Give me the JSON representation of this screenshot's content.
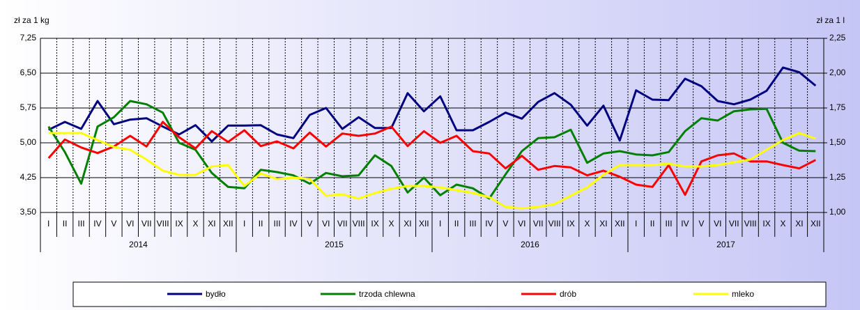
{
  "chart_data": {
    "type": "line",
    "y_label": "zł za 1 kg",
    "y2_label": "zł za 1 l",
    "categories": [
      "I",
      "II",
      "III",
      "IV",
      "V",
      "VI",
      "VII",
      "VIII",
      "IX",
      "X",
      "XI",
      "XII",
      "I",
      "II",
      "III",
      "IV",
      "V",
      "VI",
      "VII",
      "VIII",
      "IX",
      "X",
      "XI",
      "XII",
      "I",
      "II",
      "III",
      "IV",
      "V",
      "VI",
      "VII",
      "VIII",
      "IX",
      "X",
      "XI",
      "XII",
      "I",
      "II",
      "III",
      "IV",
      "V",
      "VI",
      "VII",
      "VIII",
      "IX",
      "X",
      "XI",
      "XII"
    ],
    "year_labels": [
      "2014",
      "2015",
      "2016",
      "2017"
    ],
    "ylim": [
      3.5,
      7.25
    ],
    "yticks": [
      {
        "value": 3.5,
        "label": "3,50"
      },
      {
        "value": 4.25,
        "label": "4,25"
      },
      {
        "value": 5.0,
        "label": "5,00"
      },
      {
        "value": 5.75,
        "label": "5,75"
      },
      {
        "value": 6.5,
        "label": "6,50"
      },
      {
        "value": 7.25,
        "label": "7,25"
      }
    ],
    "y2lim": [
      1.0,
      2.25
    ],
    "y2ticks": [
      {
        "value": 1.0,
        "label": "1,00"
      },
      {
        "value": 1.25,
        "label": "1,25"
      },
      {
        "value": 1.5,
        "label": "1,50"
      },
      {
        "value": 1.75,
        "label": "1,75"
      },
      {
        "value": 2.0,
        "label": "2,00"
      },
      {
        "value": 2.25,
        "label": "2,25"
      }
    ],
    "grid": true,
    "legend": "bottom",
    "series": [
      {
        "name": "bydło",
        "color": "#000080",
        "values": [
          5.28,
          5.45,
          5.3,
          5.9,
          5.4,
          5.5,
          5.53,
          5.35,
          5.18,
          5.38,
          5.03,
          5.37,
          5.37,
          5.38,
          5.18,
          5.1,
          5.6,
          5.75,
          5.3,
          5.55,
          5.32,
          5.32,
          6.07,
          5.68,
          6.0,
          5.27,
          5.27,
          5.45,
          5.65,
          5.52,
          5.88,
          6.07,
          5.82,
          5.37,
          5.8,
          5.05,
          6.13,
          5.93,
          5.92,
          6.38,
          6.22,
          5.9,
          5.83,
          5.93,
          6.12,
          6.62,
          6.52,
          6.23
        ]
      },
      {
        "name": "trzoda chlewna",
        "color": "#008000",
        "values": [
          5.35,
          4.8,
          4.12,
          5.35,
          5.55,
          5.9,
          5.83,
          5.65,
          5.0,
          4.85,
          4.35,
          4.05,
          4.02,
          4.42,
          4.37,
          4.3,
          4.12,
          4.35,
          4.28,
          4.3,
          4.73,
          4.5,
          3.93,
          4.25,
          3.87,
          4.1,
          4.02,
          3.8,
          4.32,
          4.82,
          5.1,
          5.12,
          5.28,
          4.57,
          4.77,
          4.82,
          4.75,
          4.73,
          4.8,
          5.25,
          5.53,
          5.48,
          5.68,
          5.72,
          5.73,
          5.0,
          4.83,
          4.82
        ]
      },
      {
        "name": "drób",
        "color": "#ff0000",
        "values": [
          4.67,
          5.07,
          4.9,
          4.78,
          4.92,
          5.15,
          4.92,
          5.45,
          5.12,
          4.88,
          5.25,
          5.02,
          5.27,
          4.93,
          5.03,
          4.88,
          5.22,
          4.92,
          5.2,
          5.15,
          5.2,
          5.35,
          4.93,
          5.25,
          5.0,
          5.15,
          4.82,
          4.77,
          4.45,
          4.72,
          4.42,
          4.5,
          4.47,
          4.3,
          4.4,
          4.27,
          4.1,
          4.05,
          4.52,
          3.88,
          4.6,
          4.73,
          4.77,
          4.6,
          4.6,
          4.52,
          4.45,
          4.63
        ]
      },
      {
        "name": "mleko",
        "color": "#ffff00",
        "axis": "y2",
        "values": [
          1.57,
          1.57,
          1.57,
          1.52,
          1.47,
          1.45,
          1.38,
          1.3,
          1.27,
          1.27,
          1.33,
          1.34,
          1.19,
          1.28,
          1.24,
          1.25,
          1.24,
          1.12,
          1.13,
          1.1,
          1.14,
          1.17,
          1.19,
          1.19,
          1.18,
          1.16,
          1.14,
          1.11,
          1.04,
          1.03,
          1.04,
          1.06,
          1.12,
          1.18,
          1.27,
          1.34,
          1.34,
          1.34,
          1.35,
          1.33,
          1.33,
          1.34,
          1.36,
          1.38,
          1.45,
          1.52,
          1.57,
          1.53
        ]
      }
    ]
  }
}
